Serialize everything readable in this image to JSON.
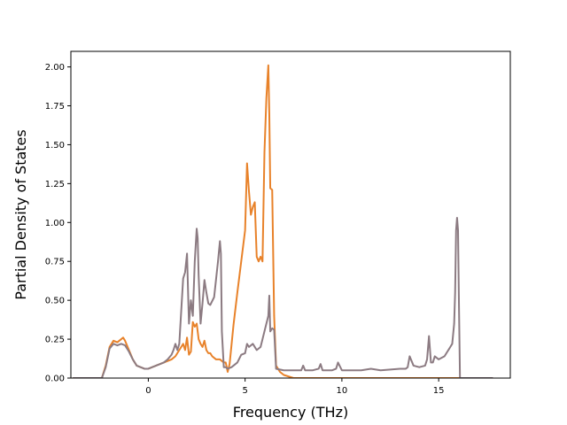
{
  "chart_data": {
    "type": "line",
    "title": "",
    "xlabel": "Frequency (THz)",
    "ylabel": "Partial Density of States",
    "xlim": [
      -4.0,
      18.7
    ],
    "ylim": [
      0.0,
      2.1
    ],
    "xticks": [
      0,
      5,
      10,
      15
    ],
    "yticks": [
      0.0,
      0.25,
      0.5,
      0.75,
      1.0,
      1.25,
      1.5,
      1.75,
      2.0
    ],
    "xtick_labels": [
      "0",
      "5",
      "10",
      "15"
    ],
    "ytick_labels": [
      "0.00",
      "0.25",
      "0.50",
      "0.75",
      "1.00",
      "1.25",
      "1.50",
      "1.75",
      "2.00"
    ],
    "grid": false,
    "legend": false,
    "series": [
      {
        "color": "#e8822a",
        "x": [
          -3.9,
          -2.4,
          -2.2,
          -2.0,
          -1.8,
          -1.6,
          -1.5,
          -1.3,
          -1.2,
          -1.0,
          -0.8,
          -0.6,
          -0.4,
          -0.2,
          0.0,
          0.2,
          0.4,
          0.6,
          0.8,
          1.0,
          1.2,
          1.4,
          1.6,
          1.7,
          1.8,
          1.9,
          2.0,
          2.1,
          2.2,
          2.3,
          2.4,
          2.5,
          2.6,
          2.7,
          2.8,
          2.9,
          3.0,
          3.1,
          3.2,
          3.3,
          3.5,
          3.7,
          3.9,
          4.0,
          4.1,
          4.2,
          4.4,
          4.6,
          4.8,
          5.0,
          5.1,
          5.2,
          5.3,
          5.4,
          5.5,
          5.6,
          5.7,
          5.8,
          5.9,
          6.0,
          6.1,
          6.2,
          6.25,
          6.3,
          6.4,
          6.5,
          6.6,
          6.8,
          7.0,
          7.5,
          8.0,
          17.8
        ],
        "y": [
          0.0,
          0.0,
          0.08,
          0.2,
          0.24,
          0.23,
          0.24,
          0.26,
          0.24,
          0.18,
          0.12,
          0.08,
          0.07,
          0.06,
          0.06,
          0.07,
          0.08,
          0.09,
          0.1,
          0.11,
          0.12,
          0.14,
          0.18,
          0.2,
          0.22,
          0.18,
          0.26,
          0.15,
          0.17,
          0.36,
          0.33,
          0.35,
          0.25,
          0.22,
          0.2,
          0.24,
          0.18,
          0.16,
          0.16,
          0.14,
          0.12,
          0.12,
          0.1,
          0.1,
          0.04,
          0.09,
          0.34,
          0.55,
          0.75,
          0.95,
          1.38,
          1.2,
          1.05,
          1.1,
          1.13,
          0.78,
          0.75,
          0.78,
          0.75,
          1.45,
          1.8,
          2.01,
          1.7,
          1.22,
          1.21,
          0.4,
          0.08,
          0.04,
          0.02,
          0.0,
          0.0,
          0.0
        ]
      },
      {
        "color": "#8c7b82",
        "x": [
          -3.9,
          -2.4,
          -2.2,
          -2.0,
          -1.8,
          -1.6,
          -1.4,
          -1.2,
          -1.0,
          -0.8,
          -0.6,
          -0.4,
          -0.2,
          0.0,
          0.2,
          0.4,
          0.6,
          0.8,
          1.0,
          1.2,
          1.3,
          1.4,
          1.5,
          1.6,
          1.8,
          1.9,
          2.0,
          2.1,
          2.2,
          2.3,
          2.4,
          2.5,
          2.55,
          2.6,
          2.7,
          2.8,
          2.9,
          3.0,
          3.1,
          3.2,
          3.4,
          3.6,
          3.7,
          3.75,
          3.8,
          3.9,
          4.0,
          4.1,
          4.3,
          4.6,
          4.8,
          5.0,
          5.1,
          5.2,
          5.4,
          5.6,
          5.8,
          6.0,
          6.2,
          6.25,
          6.3,
          6.4,
          6.5,
          6.6,
          7.0,
          7.5,
          7.9,
          8.0,
          8.1,
          8.5,
          8.8,
          8.9,
          9.0,
          9.5,
          9.7,
          9.8,
          10.0,
          11.0,
          11.5,
          12.0,
          13.0,
          13.3,
          13.4,
          13.5,
          13.7,
          14.0,
          14.3,
          14.4,
          14.5,
          14.6,
          14.7,
          14.8,
          15.0,
          15.3,
          15.6,
          15.7,
          15.8,
          15.85,
          15.9,
          15.95,
          16.0,
          16.05,
          16.1,
          17.8
        ],
        "y": [
          0.0,
          0.0,
          0.07,
          0.19,
          0.22,
          0.21,
          0.22,
          0.21,
          0.17,
          0.12,
          0.08,
          0.07,
          0.06,
          0.06,
          0.07,
          0.08,
          0.09,
          0.1,
          0.12,
          0.15,
          0.18,
          0.22,
          0.18,
          0.22,
          0.64,
          0.68,
          0.8,
          0.35,
          0.5,
          0.4,
          0.75,
          0.96,
          0.9,
          0.66,
          0.35,
          0.48,
          0.63,
          0.55,
          0.48,
          0.47,
          0.52,
          0.75,
          0.88,
          0.8,
          0.3,
          0.07,
          0.07,
          0.06,
          0.07,
          0.1,
          0.15,
          0.16,
          0.22,
          0.2,
          0.22,
          0.18,
          0.2,
          0.3,
          0.4,
          0.53,
          0.3,
          0.32,
          0.31,
          0.06,
          0.05,
          0.05,
          0.05,
          0.08,
          0.05,
          0.05,
          0.06,
          0.09,
          0.05,
          0.05,
          0.06,
          0.1,
          0.05,
          0.05,
          0.06,
          0.05,
          0.06,
          0.06,
          0.07,
          0.14,
          0.08,
          0.07,
          0.08,
          0.12,
          0.27,
          0.1,
          0.1,
          0.14,
          0.12,
          0.14,
          0.2,
          0.22,
          0.35,
          0.55,
          0.95,
          1.03,
          0.95,
          0.45,
          0.0,
          0.0
        ]
      }
    ]
  }
}
